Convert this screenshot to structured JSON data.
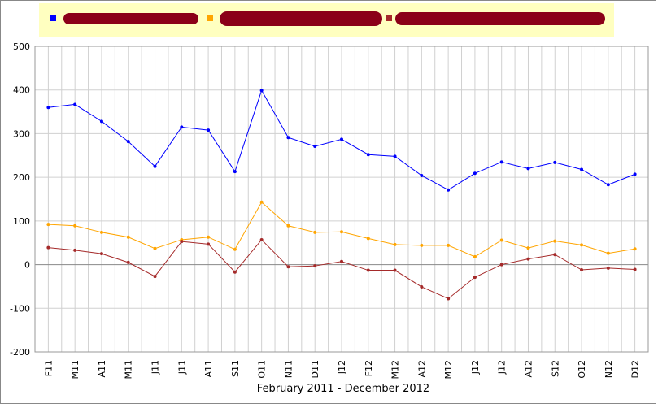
{
  "chart_data": {
    "type": "line",
    "x_label": "February 2011 - December 2012",
    "categories": [
      "F11",
      "M11",
      "A11",
      "M11",
      "J11",
      "J11",
      "A11",
      "S11",
      "O11",
      "N11",
      "D11",
      "J12",
      "F12",
      "M12",
      "A12",
      "M12",
      "J12",
      "J12",
      "A12",
      "S12",
      "O12",
      "N12",
      "D12"
    ],
    "series": [
      {
        "color": "#0000ff",
        "values": [
          360,
          367,
          328,
          282,
          225,
          315,
          308,
          213,
          399,
          291,
          271,
          287,
          252,
          248,
          204,
          171,
          209,
          235,
          220,
          234,
          218,
          183,
          207
        ]
      },
      {
        "color": "#ffa500",
        "values": [
          92,
          89,
          74,
          63,
          37,
          57,
          63,
          35,
          143,
          89,
          74,
          75,
          60,
          46,
          44,
          44,
          18,
          56,
          38,
          54,
          45,
          26,
          36
        ]
      },
      {
        "color": "#a52a2a",
        "values": [
          39,
          33,
          25,
          5,
          -27,
          53,
          47,
          -17,
          57,
          -5,
          -3,
          7,
          -13,
          -13,
          -51,
          -78,
          -29,
          0,
          13,
          23,
          -12,
          -8,
          -11
        ]
      }
    ],
    "ylim": [
      -200,
      500
    ],
    "yticks": [
      -200,
      -100,
      0,
      100,
      200,
      300,
      400,
      500
    ],
    "grid": true
  }
}
